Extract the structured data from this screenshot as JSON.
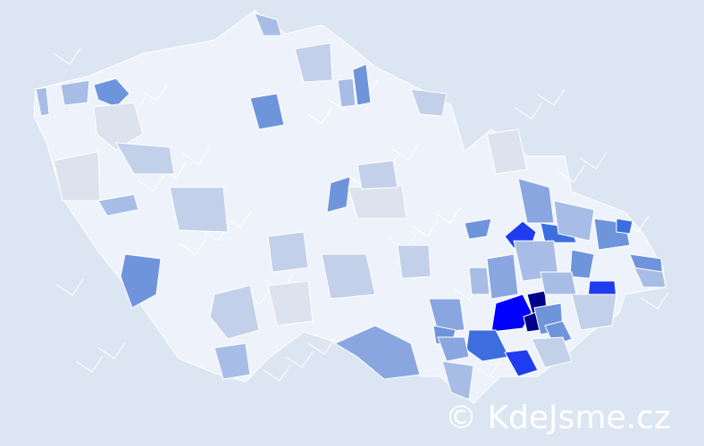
{
  "watermark": "© KdeJsme.cz",
  "colors": {
    "background": "#dce6f2",
    "base_fill": "#eef2fa",
    "border": "#ffffff",
    "scale": [
      "#dde3ee",
      "#c3d0ea",
      "#a8bde6",
      "#8aa6e0",
      "#6e94dc",
      "#3c6ee0",
      "#1f3cf0",
      "#0000ff",
      "#00008b"
    ]
  },
  "regions": [
    {
      "level": 2
    },
    {
      "level": 2
    },
    {
      "level": 4
    },
    {
      "level": 0
    },
    {
      "level": 1
    },
    {
      "level": 0
    },
    {
      "level": 2
    },
    {
      "level": 1
    },
    {
      "level": 4
    },
    {
      "level": 1
    },
    {
      "level": 2
    },
    {
      "level": 4
    },
    {
      "level": 2
    },
    {
      "level": 1
    },
    {
      "level": 4
    },
    {
      "level": 2
    },
    {
      "level": 1
    },
    {
      "level": 4
    },
    {
      "level": 0
    },
    {
      "level": 1
    },
    {
      "level": 1
    },
    {
      "level": 1
    },
    {
      "level": 0
    },
    {
      "level": 3
    },
    {
      "level": 0
    },
    {
      "level": 4
    },
    {
      "level": 3
    },
    {
      "level": 6
    },
    {
      "level": 5
    },
    {
      "level": 2
    },
    {
      "level": 4
    },
    {
      "level": 5
    },
    {
      "level": 4
    },
    {
      "level": 2
    },
    {
      "level": 4
    },
    {
      "level": 6
    },
    {
      "level": 1
    },
    {
      "level": 3
    },
    {
      "level": 2
    },
    {
      "level": 7
    },
    {
      "level": 8
    },
    {
      "level": 8
    },
    {
      "level": 4
    },
    {
      "level": 4
    },
    {
      "level": 5
    },
    {
      "level": 6
    },
    {
      "level": 1
    },
    {
      "level": 3
    },
    {
      "level": 4
    },
    {
      "level": 3
    },
    {
      "level": 2
    },
    {
      "level": 2
    },
    {
      "level": 1
    },
    {
      "level": 2
    }
  ]
}
